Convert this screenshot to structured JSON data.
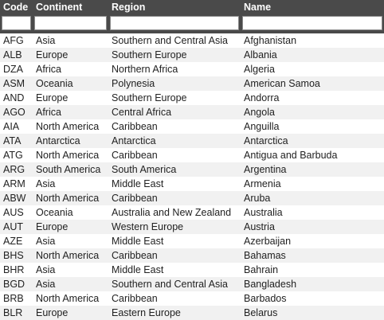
{
  "columns": [
    "Code",
    "Continent",
    "Region",
    "Name"
  ],
  "filters": [
    "",
    "",
    "",
    ""
  ],
  "rows": [
    [
      "AFG",
      "Asia",
      "Southern and Central Asia",
      "Afghanistan"
    ],
    [
      "ALB",
      "Europe",
      "Southern Europe",
      "Albania"
    ],
    [
      "DZA",
      "Africa",
      "Northern Africa",
      "Algeria"
    ],
    [
      "ASM",
      "Oceania",
      "Polynesia",
      "American Samoa"
    ],
    [
      "AND",
      "Europe",
      "Southern Europe",
      "Andorra"
    ],
    [
      "AGO",
      "Africa",
      "Central Africa",
      "Angola"
    ],
    [
      "AIA",
      "North America",
      "Caribbean",
      "Anguilla"
    ],
    [
      "ATA",
      "Antarctica",
      "Antarctica",
      "Antarctica"
    ],
    [
      "ATG",
      "North America",
      "Caribbean",
      "Antigua and Barbuda"
    ],
    [
      "ARG",
      "South America",
      "South America",
      "Argentina"
    ],
    [
      "ARM",
      "Asia",
      "Middle East",
      "Armenia"
    ],
    [
      "ABW",
      "North America",
      "Caribbean",
      "Aruba"
    ],
    [
      "AUS",
      "Oceania",
      "Australia and New Zealand",
      "Australia"
    ],
    [
      "AUT",
      "Europe",
      "Western Europe",
      "Austria"
    ],
    [
      "AZE",
      "Asia",
      "Middle East",
      "Azerbaijan"
    ],
    [
      "BHS",
      "North America",
      "Caribbean",
      "Bahamas"
    ],
    [
      "BHR",
      "Asia",
      "Middle East",
      "Bahrain"
    ],
    [
      "BGD",
      "Asia",
      "Southern and Central Asia",
      "Bangladesh"
    ],
    [
      "BRB",
      "North America",
      "Caribbean",
      "Barbados"
    ],
    [
      "BLR",
      "Europe",
      "Eastern Europe",
      "Belarus"
    ]
  ]
}
